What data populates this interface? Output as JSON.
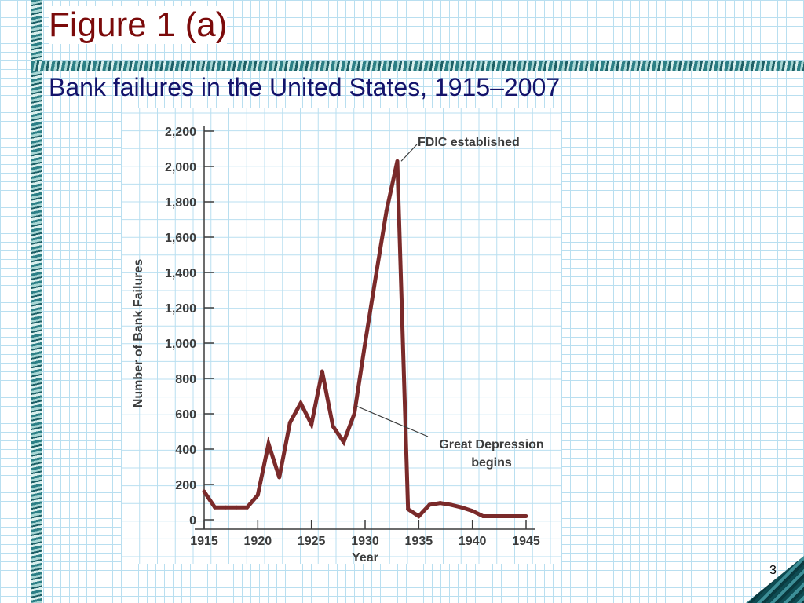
{
  "slide": {
    "title": "Figure 1 (a)",
    "subtitle": "Bank failures in the United States, 1915–2007",
    "page_number": "3"
  },
  "colors": {
    "title": "#7b0a0a",
    "subtitle": "#13136b",
    "line": "#7a2a2a",
    "grid": "#b9dff0",
    "band": "#2c7f86"
  },
  "chart_data": {
    "type": "line",
    "title": "",
    "xlabel": "Year",
    "ylabel": "Number of Bank Failures",
    "xlim": [
      1915,
      1945
    ],
    "ylim": [
      0,
      2200
    ],
    "x_ticks": [
      1915,
      1920,
      1925,
      1930,
      1935,
      1940,
      1945
    ],
    "x_tick_labels": [
      "1915",
      "1920",
      "1925",
      "1930",
      "1935",
      "1940",
      "1945"
    ],
    "y_ticks": [
      0,
      200,
      400,
      600,
      800,
      1000,
      1200,
      1400,
      1600,
      1800,
      2000,
      2200
    ],
    "y_tick_labels": [
      "0",
      "200",
      "400",
      "600",
      "800",
      "1,000",
      "1,200",
      "1,400",
      "1,600",
      "1,800",
      "2,000",
      "2,200"
    ],
    "grid": true,
    "series": [
      {
        "x": [
          1915,
          1916,
          1917,
          1918,
          1919,
          1920,
          1921,
          1922,
          1923,
          1924,
          1925,
          1926,
          1927,
          1928,
          1929,
          1930,
          1931,
          1932,
          1933,
          1934,
          1935,
          1936,
          1937,
          1938,
          1939,
          1940,
          1941,
          1942,
          1943,
          1944,
          1945
        ],
        "y": [
          160,
          70,
          70,
          70,
          70,
          140,
          430,
          240,
          550,
          660,
          540,
          840,
          530,
          440,
          600,
          1000,
          1380,
          1750,
          2030,
          60,
          20,
          85,
          95,
          85,
          70,
          50,
          20,
          20,
          20,
          20,
          20
        ]
      }
    ],
    "annotations": [
      {
        "text": "FDIC established",
        "x": 1933,
        "y": 2030
      },
      {
        "text_lines": [
          "Great Depression",
          "begins"
        ],
        "x": 1929,
        "y": 600
      }
    ]
  }
}
